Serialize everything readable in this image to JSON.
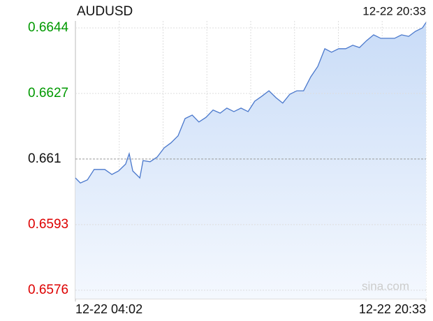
{
  "chart_data": {
    "type": "area",
    "title": "AUDUSD",
    "timestamp": "12-22 20:33",
    "watermark": "sina.com",
    "x": [
      0,
      14,
      34,
      53,
      83,
      103,
      122,
      142,
      152,
      162,
      182,
      191,
      211,
      231,
      251,
      270,
      290,
      310,
      330,
      349,
      369,
      389,
      409,
      428,
      448,
      468,
      488,
      507,
      527,
      547,
      567,
      586,
      606,
      626,
      645,
      665,
      685,
      705,
      724,
      744,
      764,
      784,
      803,
      823,
      843,
      863,
      882,
      902,
      922,
      942,
      961,
      981,
      991
    ],
    "series": [
      {
        "name": "AUDUSD",
        "color": "#4a78cc",
        "values": [
          0.66051,
          0.66038,
          0.66046,
          0.66073,
          0.66073,
          0.6606,
          0.66069,
          0.66087,
          0.66114,
          0.66069,
          0.66051,
          0.66096,
          0.66093,
          0.66105,
          0.66129,
          0.66142,
          0.6616,
          0.66205,
          0.66214,
          0.66196,
          0.66208,
          0.66227,
          0.66219,
          0.66232,
          0.66223,
          0.66232,
          0.66223,
          0.6625,
          0.66263,
          0.66277,
          0.66259,
          0.66245,
          0.66268,
          0.66277,
          0.66277,
          0.66313,
          0.6634,
          0.66386,
          0.66377,
          0.66386,
          0.66386,
          0.66395,
          0.66389,
          0.66407,
          0.66422,
          0.66413,
          0.66413,
          0.66413,
          0.66422,
          0.66418,
          0.66431,
          0.6644,
          0.66454
        ]
      }
    ],
    "xlim": [
      0,
      991
    ],
    "xticks": [
      {
        "value": 0,
        "label": "12-22 04:02"
      },
      {
        "value": 991,
        "label": "12-22 20:33"
      }
    ],
    "ylim": [
      0.65738,
      0.66458
    ],
    "yticks": [
      0.6644,
      0.6627,
      0.661,
      0.6593,
      0.6576
    ],
    "baseline": 0.661,
    "up_color": "#009900",
    "down_color": "#dd0000",
    "grid": true
  }
}
